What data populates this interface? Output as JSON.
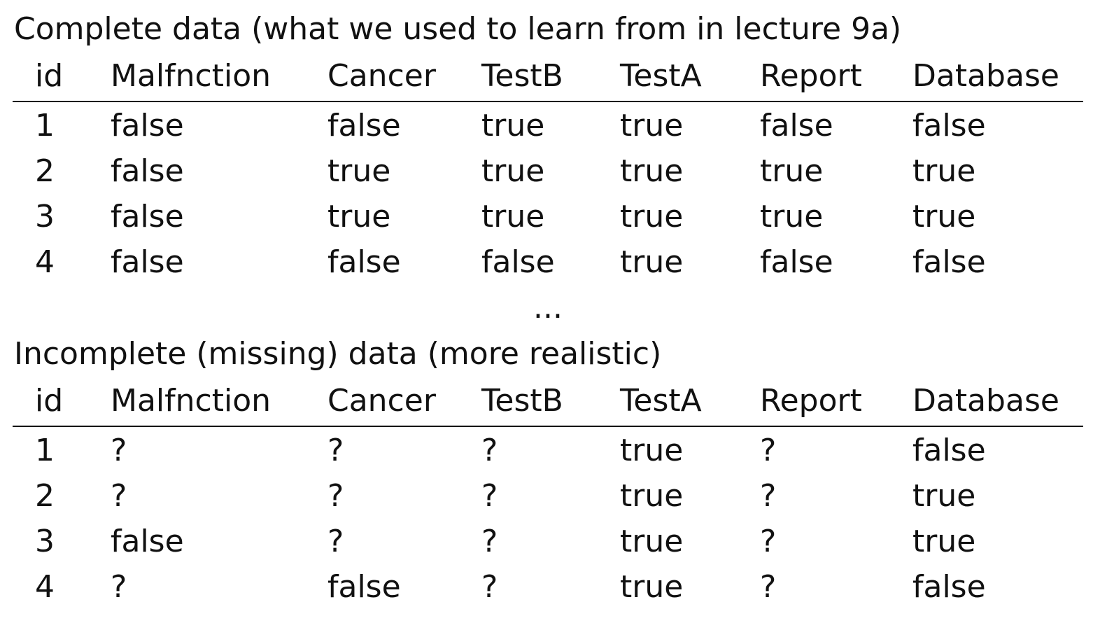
{
  "complete": {
    "title": "Complete data (what we used to learn from in lecture 9a)",
    "columns": [
      "id",
      "Malfnction",
      "Cancer",
      "TestB",
      "TestA",
      "Report",
      "Database"
    ],
    "rows": [
      [
        "1",
        "false",
        "false",
        "true",
        "true",
        "false",
        "false"
      ],
      [
        "2",
        "false",
        "true",
        "true",
        "true",
        "true",
        "true"
      ],
      [
        "3",
        "false",
        "true",
        "true",
        "true",
        "true",
        "true"
      ],
      [
        "4",
        "false",
        "false",
        "false",
        "true",
        "false",
        "false"
      ]
    ]
  },
  "ellipsis": "...",
  "incomplete": {
    "title": "Incomplete (missing) data (more realistic)",
    "columns": [
      "id",
      "Malfnction",
      "Cancer",
      "TestB",
      "TestA",
      "Report",
      "Database"
    ],
    "rows": [
      [
        "1",
        "?",
        "?",
        "?",
        "true",
        "?",
        "false"
      ],
      [
        "2",
        "?",
        "?",
        "?",
        "true",
        "?",
        "true"
      ],
      [
        "3",
        "false",
        "?",
        "?",
        "true",
        "?",
        "true"
      ],
      [
        "4",
        "?",
        "false",
        "?",
        "true",
        "?",
        "false"
      ]
    ]
  }
}
